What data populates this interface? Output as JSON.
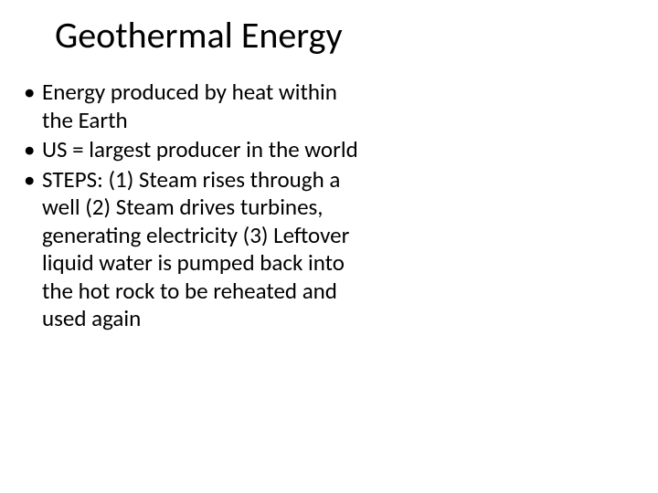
{
  "title": "Geothermal Energy",
  "bullets": [
    "Energy produced by heat within the Earth",
    "US = largest producer in the world",
    "STEPS: (1) Steam rises through a well (2) Steam drives turbines, generating electricity (3) Leftover liquid water is pumped back into the hot rock to be reheated and used again"
  ],
  "colors": {
    "background": "#ffffff",
    "text": "#000000"
  },
  "typography": {
    "title_fontsize": 40,
    "body_fontsize": 25,
    "font_family": "Calibri"
  }
}
